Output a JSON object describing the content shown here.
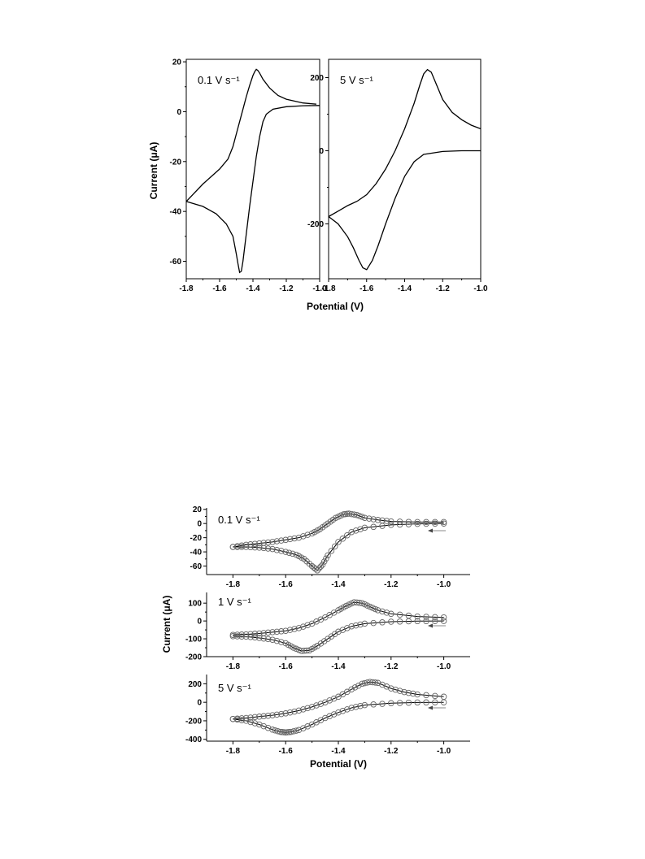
{
  "figure_top": {
    "ylabel": "Current (μA)",
    "xlabel": "Potential (V)",
    "panels": [
      {
        "label": "0.1 V s⁻¹"
      },
      {
        "label": "5 V s⁻¹"
      }
    ]
  },
  "figure_bottom": {
    "ylabel": "Current (μA)",
    "xlabel": "Potential (V)",
    "panels": [
      {
        "label": "0.1 V s⁻¹"
      },
      {
        "label": "1 V s⁻¹"
      },
      {
        "label": "5 V s⁻¹"
      }
    ]
  },
  "chart_data": [
    {
      "type": "line",
      "title": "",
      "scan_rate": "0.1 V s⁻¹",
      "xlabel": "Potential (V)",
      "ylabel": "Current (μA)",
      "xlim": [
        -1.8,
        -1.0
      ],
      "ylim": [
        -67,
        21
      ],
      "xticks": [
        -1.8,
        -1.6,
        -1.4,
        -1.2,
        -1.0
      ],
      "xtick_labels": [
        "-1.8",
        "-1.6",
        "-1.4",
        "-1.2",
        "-1.0"
      ],
      "yticks": [
        20,
        0,
        -20,
        -40,
        -60
      ],
      "ytick_labels": [
        "20",
        "0",
        "-20",
        "-40",
        "-60"
      ],
      "grid": false,
      "series": [
        {
          "x": [
            -1.0,
            -1.1,
            -1.2,
            -1.28,
            -1.32,
            -1.34,
            -1.36,
            -1.38,
            -1.4,
            -1.42,
            -1.44,
            -1.46,
            -1.47,
            -1.48,
            -1.49,
            -1.5,
            -1.52,
            -1.56,
            -1.62,
            -1.7,
            -1.8
          ],
          "y": [
            2.5,
            2.4,
            2.0,
            1.0,
            -1.0,
            -4.0,
            -10.0,
            -18.0,
            -28.0,
            -38.0,
            -49.0,
            -60.0,
            -64.0,
            -64.5,
            -61.0,
            -57.0,
            -50.0,
            -45.0,
            -41.0,
            -38.0,
            -36.0
          ]
        },
        {
          "x": [
            -1.8,
            -1.7,
            -1.6,
            -1.55,
            -1.52,
            -1.5,
            -1.48,
            -1.46,
            -1.44,
            -1.42,
            -1.4,
            -1.39,
            -1.38,
            -1.37,
            -1.36,
            -1.34,
            -1.3,
            -1.25,
            -1.2,
            -1.1,
            -1.02
          ],
          "y": [
            -36.0,
            -29.0,
            -23.0,
            -19.0,
            -14.0,
            -9.0,
            -4.0,
            1.0,
            6.0,
            10.5,
            14.5,
            16.0,
            17.0,
            16.5,
            15.5,
            13.0,
            9.5,
            6.5,
            5.0,
            3.5,
            3.0
          ]
        }
      ]
    },
    {
      "type": "line",
      "title": "",
      "scan_rate": "5 V s⁻¹",
      "xlabel": "Potential (V)",
      "ylabel": "Current (μA)",
      "xlim": [
        -1.8,
        -1.0
      ],
      "ylim": [
        -350,
        250
      ],
      "xticks": [
        -1.8,
        -1.6,
        -1.4,
        -1.2,
        -1.0
      ],
      "xtick_labels": [
        "-1.8",
        "-1.6",
        "-1.4",
        "-1.2",
        "-1.0"
      ],
      "yticks": [
        200,
        0,
        -200
      ],
      "ytick_labels": [
        "200",
        "0",
        "-200"
      ],
      "grid": false,
      "series": [
        {
          "x": [
            -1.0,
            -1.1,
            -1.2,
            -1.3,
            -1.35,
            -1.4,
            -1.45,
            -1.5,
            -1.54,
            -1.57,
            -1.6,
            -1.62,
            -1.64,
            -1.67,
            -1.7,
            -1.75,
            -1.8
          ],
          "y": [
            0,
            0,
            -2,
            -10,
            -30,
            -70,
            -130,
            -200,
            -260,
            -300,
            -325,
            -320,
            -300,
            -265,
            -235,
            -200,
            -180
          ]
        },
        {
          "x": [
            -1.8,
            -1.75,
            -1.7,
            -1.65,
            -1.6,
            -1.55,
            -1.5,
            -1.45,
            -1.4,
            -1.35,
            -1.32,
            -1.3,
            -1.28,
            -1.26,
            -1.24,
            -1.2,
            -1.15,
            -1.1,
            -1.05,
            -1.0
          ],
          "y": [
            -180,
            -165,
            -150,
            -138,
            -120,
            -90,
            -50,
            0,
            60,
            130,
            180,
            210,
            222,
            215,
            190,
            140,
            105,
            85,
            70,
            60
          ]
        }
      ]
    },
    {
      "type": "scatter",
      "title": "",
      "scan_rate": "0.1 V s⁻¹",
      "xlabel": "Potential (V)",
      "ylabel": "Current (μA)",
      "xlim": [
        -1.9,
        -0.9
      ],
      "ylim": [
        -72,
        22
      ],
      "xticks": [
        -1.8,
        -1.6,
        -1.4,
        -1.2,
        -1.0
      ],
      "xtick_labels": [
        "-1.8",
        "-1.6",
        "-1.4",
        "-1.2",
        "-1.0"
      ],
      "yticks": [
        20,
        0,
        -20,
        -40,
        -60
      ],
      "ytick_labels": [
        "20",
        "0",
        "-20",
        "-40",
        "-60"
      ],
      "grid": false,
      "series": [
        {
          "x": [
            -1.0,
            -1.1,
            -1.2,
            -1.3,
            -1.35,
            -1.4,
            -1.44,
            -1.46,
            -1.48,
            -1.5,
            -1.53,
            -1.56,
            -1.6,
            -1.65,
            -1.7,
            -1.75,
            -1.8
          ],
          "y": [
            0,
            -0.5,
            -2,
            -6,
            -12,
            -26,
            -45,
            -58,
            -66,
            -60,
            -50,
            -44,
            -40,
            -36,
            -34,
            -33,
            -33
          ]
        },
        {
          "x": [
            -1.8,
            -1.75,
            -1.7,
            -1.65,
            -1.6,
            -1.55,
            -1.5,
            -1.47,
            -1.44,
            -1.41,
            -1.38,
            -1.36,
            -1.33,
            -1.3,
            -1.25,
            -1.2,
            -1.1,
            -1.0
          ],
          "y": [
            -33,
            -30,
            -28,
            -26,
            -23,
            -20,
            -14,
            -8,
            0,
            8,
            13,
            14,
            12,
            8,
            5,
            3,
            2,
            2
          ]
        }
      ]
    },
    {
      "type": "scatter",
      "title": "",
      "scan_rate": "1 V s⁻¹",
      "xlabel": "Potential (V)",
      "ylabel": "Current (μA)",
      "xlim": [
        -1.9,
        -0.9
      ],
      "ylim": [
        -200,
        160
      ],
      "xticks": [
        -1.8,
        -1.6,
        -1.4,
        -1.2,
        -1.0
      ],
      "xtick_labels": [
        "-1.8",
        "-1.6",
        "-1.4",
        "-1.2",
        "-1.0"
      ],
      "yticks": [
        100,
        0,
        -100,
        -200
      ],
      "ytick_labels": [
        "100",
        "0",
        "-100",
        "-200"
      ],
      "grid": false,
      "series": [
        {
          "x": [
            -1.0,
            -1.1,
            -1.2,
            -1.3,
            -1.35,
            -1.4,
            -1.44,
            -1.48,
            -1.51,
            -1.54,
            -1.57,
            -1.6,
            -1.65,
            -1.7,
            -1.75,
            -1.8
          ],
          "y": [
            0,
            -1,
            -4,
            -15,
            -30,
            -60,
            -100,
            -140,
            -165,
            -168,
            -150,
            -125,
            -105,
            -95,
            -88,
            -85
          ]
        },
        {
          "x": [
            -1.8,
            -1.75,
            -1.7,
            -1.65,
            -1.6,
            -1.55,
            -1.5,
            -1.45,
            -1.4,
            -1.37,
            -1.34,
            -1.31,
            -1.28,
            -1.25,
            -1.2,
            -1.1,
            -1.0
          ],
          "y": [
            -78,
            -75,
            -70,
            -63,
            -55,
            -40,
            -15,
            20,
            60,
            85,
            105,
            100,
            80,
            60,
            40,
            25,
            20
          ]
        }
      ]
    },
    {
      "type": "scatter",
      "title": "",
      "scan_rate": "5 V s⁻¹",
      "xlabel": "Potential (V)",
      "ylabel": "Current (μA)",
      "xlim": [
        -1.9,
        -0.9
      ],
      "ylim": [
        -420,
        300
      ],
      "xticks": [
        -1.8,
        -1.6,
        -1.4,
        -1.2,
        -1.0
      ],
      "xtick_labels": [
        "-1.8",
        "-1.6",
        "-1.4",
        "-1.2",
        "-1.0"
      ],
      "yticks": [
        200,
        0,
        -200,
        -400
      ],
      "ytick_labels": [
        "200",
        "0",
        "-200",
        "-400"
      ],
      "grid": false,
      "series": [
        {
          "x": [
            -1.0,
            -1.1,
            -1.2,
            -1.3,
            -1.35,
            -1.4,
            -1.45,
            -1.5,
            -1.55,
            -1.58,
            -1.6,
            -1.62,
            -1.65,
            -1.7,
            -1.75,
            -1.8
          ],
          "y": [
            0,
            -2,
            -10,
            -30,
            -60,
            -110,
            -170,
            -240,
            -300,
            -320,
            -325,
            -320,
            -295,
            -240,
            -200,
            -180
          ]
        },
        {
          "x": [
            -1.8,
            -1.75,
            -1.7,
            -1.65,
            -1.6,
            -1.55,
            -1.5,
            -1.45,
            -1.4,
            -1.35,
            -1.31,
            -1.28,
            -1.25,
            -1.2,
            -1.15,
            -1.1,
            -1.0
          ],
          "y": [
            -180,
            -170,
            -155,
            -140,
            -120,
            -90,
            -50,
            0,
            60,
            140,
            200,
            220,
            210,
            150,
            110,
            85,
            60
          ]
        }
      ]
    }
  ]
}
